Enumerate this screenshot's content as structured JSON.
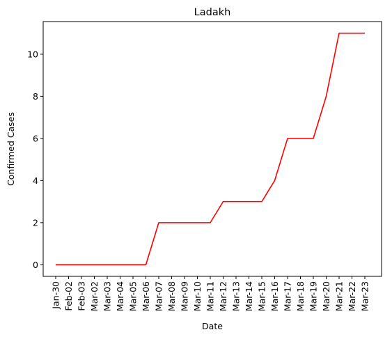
{
  "chart_data": {
    "type": "line",
    "title": "Ladakh",
    "xlabel": "Date",
    "ylabel": "Confirmed Cases",
    "x": [
      "Jan-30",
      "Feb-02",
      "Feb-03",
      "Mar-02",
      "Mar-03",
      "Mar-04",
      "Mar-05",
      "Mar-06",
      "Mar-07",
      "Mar-08",
      "Mar-09",
      "Mar-10",
      "Mar-11",
      "Mar-12",
      "Mar-13",
      "Mar-14",
      "Mar-15",
      "Mar-16",
      "Mar-17",
      "Mar-18",
      "Mar-19",
      "Mar-20",
      "Mar-21",
      "Mar-22",
      "Mar-23"
    ],
    "series": [
      {
        "color": "#ff0000",
        "values": [
          0,
          0,
          0,
          0,
          0,
          0,
          0,
          0,
          2,
          2,
          2,
          2,
          2,
          3,
          3,
          3,
          3,
          4,
          6,
          6,
          6,
          8,
          11,
          11,
          11
        ]
      }
    ],
    "ylim": [
      -0.55,
      11.55
    ],
    "yticks": [
      0,
      2,
      4,
      6,
      8,
      10
    ],
    "grid": false
  }
}
